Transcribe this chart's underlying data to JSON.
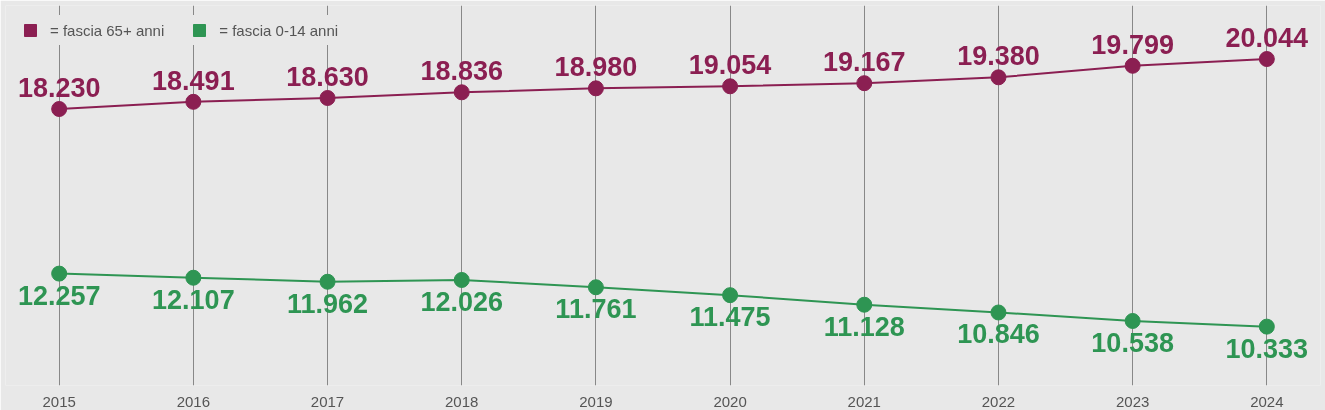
{
  "chart_data": {
    "type": "line",
    "categories": [
      "2015",
      "2016",
      "2017",
      "2018",
      "2019",
      "2020",
      "2021",
      "2022",
      "2023",
      "2024"
    ],
    "series": [
      {
        "name": "= fascia 65+ anni",
        "color": "#8b1f52",
        "values": [
          18230,
          18491,
          18630,
          18836,
          18980,
          19054,
          19167,
          19380,
          19799,
          20044
        ],
        "value_labels": [
          "18.230",
          "18.491",
          "18.630",
          "18.836",
          "18.980",
          "19.054",
          "19.167",
          "19.380",
          "19.799",
          "20.044"
        ]
      },
      {
        "name": "= fascia 0-14 anni",
        "color": "#2e9553",
        "values": [
          12257,
          12107,
          11962,
          12026,
          11761,
          11475,
          11128,
          10846,
          10538,
          10333
        ],
        "value_labels": [
          "12.257",
          "12.107",
          "11.962",
          "12.026",
          "11.761",
          "11.475",
          "11.128",
          "10.846",
          "10.538",
          "10.333"
        ]
      }
    ],
    "grid": "x",
    "legend": "top left",
    "marker": "circle",
    "line_style": "solid"
  }
}
